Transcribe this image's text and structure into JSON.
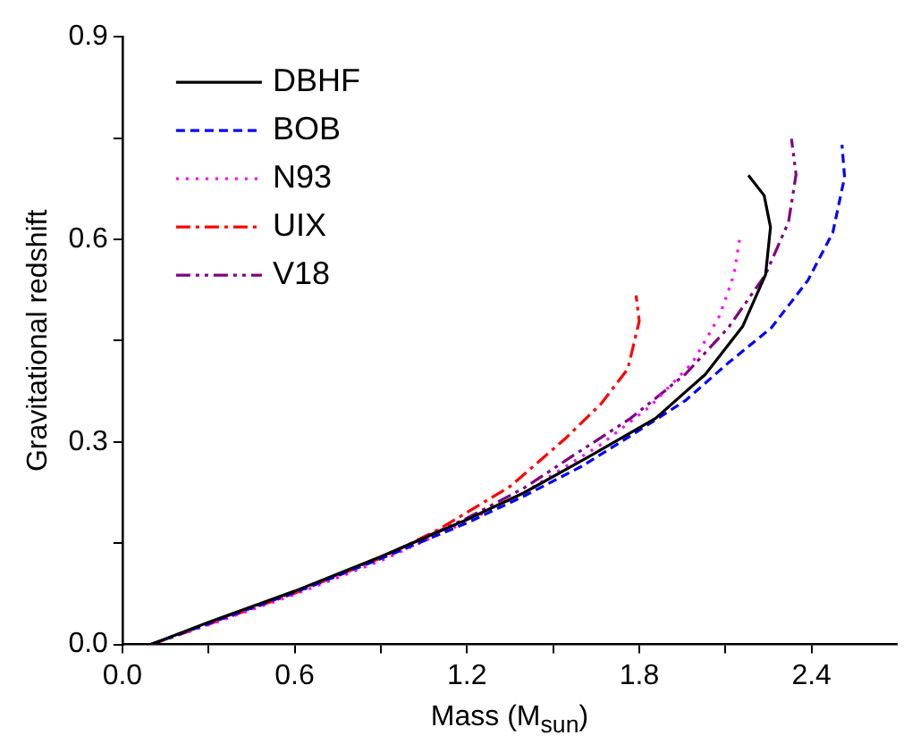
{
  "chart_data": {
    "type": "line",
    "xlabel": "Mass (M$_{sun}$)",
    "ylabel": "Gravitational redshift",
    "xlim": [
      0,
      2.7
    ],
    "ylim": [
      0,
      0.9
    ],
    "xticks": [
      {
        "value": 0,
        "label": "0.0"
      },
      {
        "value": 0.3,
        "label": null
      },
      {
        "value": 0.6,
        "label": "0.6"
      },
      {
        "value": 0.9,
        "label": null
      },
      {
        "value": 1.2,
        "label": "1.2"
      },
      {
        "value": 1.5,
        "label": null
      },
      {
        "value": 1.8,
        "label": "1.8"
      },
      {
        "value": 2.1,
        "label": null
      },
      {
        "value": 2.4,
        "label": "2.4"
      }
    ],
    "yticks": [
      {
        "value": 0,
        "label": "0.0"
      },
      {
        "value": 0.15,
        "label": null
      },
      {
        "value": 0.3,
        "label": "0.3"
      },
      {
        "value": 0.45,
        "label": null
      },
      {
        "value": 0.6,
        "label": "0.6"
      },
      {
        "value": 0.75,
        "label": null
      },
      {
        "value": 0.9,
        "label": "0.9"
      }
    ],
    "grid": false,
    "legend": "top left",
    "marker": "none",
    "series": [
      {
        "name": "DBHF",
        "color": "#000000",
        "line_style": "solid",
        "x": [
          0.1,
          0.3,
          0.6,
          0.9,
          1.2,
          1.4,
          1.62,
          1.857,
          2.03,
          2.16,
          2.24,
          2.257,
          2.235,
          2.18
        ],
        "values": [
          0,
          0.033,
          0.079,
          0.13,
          0.185,
          0.225,
          0.277,
          0.335,
          0.4,
          0.471,
          0.548,
          0.618,
          0.665,
          0.695
        ]
      },
      {
        "name": "BOB",
        "color": "#0000ff",
        "line_style": "dashed",
        "x": [
          0.1,
          0.3,
          0.6,
          0.9,
          1.2,
          1.4,
          1.6,
          1.77,
          1.96,
          2.11,
          2.26,
          2.387,
          2.474,
          2.515,
          2.506
        ],
        "values": [
          0,
          0.031,
          0.077,
          0.127,
          0.18,
          0.22,
          0.264,
          0.309,
          0.361,
          0.417,
          0.469,
          0.539,
          0.61,
          0.692,
          0.74
        ]
      },
      {
        "name": "N93",
        "color": "#ff00ff",
        "line_style": "dotted",
        "x": [
          0.1,
          0.3,
          0.6,
          0.9,
          1.2,
          1.4,
          1.666,
          1.836,
          1.985,
          2.08,
          2.13,
          2.149
        ],
        "values": [
          0,
          0.029,
          0.074,
          0.124,
          0.182,
          0.225,
          0.296,
          0.352,
          0.417,
          0.487,
          0.548,
          0.599
        ]
      },
      {
        "name": "UIX",
        "color": "#ff0000",
        "line_style": "dashdot",
        "x": [
          0.1,
          0.3,
          0.6,
          0.9,
          1.1,
          1.35,
          1.54,
          1.666,
          1.76,
          1.8,
          1.789
        ],
        "values": [
          0,
          0.03,
          0.076,
          0.128,
          0.17,
          0.234,
          0.304,
          0.356,
          0.408,
          0.479,
          0.517
        ]
      },
      {
        "name": "V18",
        "color": "#800080",
        "line_style": "dashdotdot",
        "x": [
          0.1,
          0.3,
          0.6,
          0.9,
          1.2,
          1.4,
          1.56,
          1.77,
          1.96,
          2.11,
          2.24,
          2.32,
          2.346,
          2.33
        ],
        "values": [
          0,
          0.032,
          0.078,
          0.129,
          0.187,
          0.232,
          0.277,
          0.335,
          0.4,
          0.469,
          0.548,
          0.626,
          0.696,
          0.749
        ]
      }
    ]
  }
}
